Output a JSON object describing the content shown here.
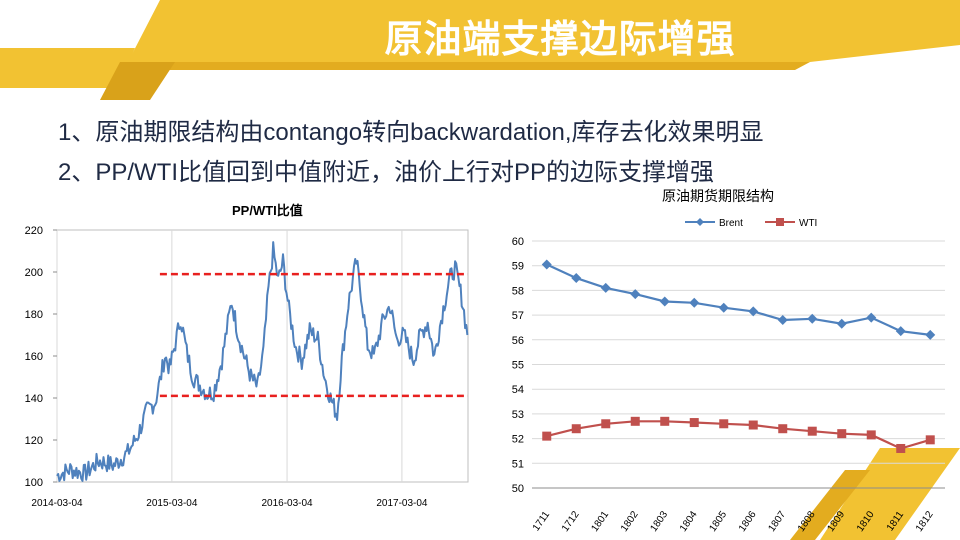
{
  "slide": {
    "title": "原油端支撑边际增强",
    "bullets": [
      "1、原油期限结构由contango转向backwardation,库存去化效果明显",
      "2、PP/WTI比值回到中值附近，油价上行对PP的边际支撑增强"
    ],
    "colors": {
      "accent_gold": "#f2c232",
      "accent_dark": "#d9a21a",
      "text": "#1f2a44"
    }
  },
  "chart_data": [
    {
      "type": "line",
      "title": "PP/WTI比值",
      "x_ticks": [
        "2014-03-04",
        "2015-03-04",
        "2016-03-04",
        "2017-03-04"
      ],
      "y_ticks": [
        "100",
        "120",
        "140",
        "160",
        "180",
        "200",
        "220"
      ],
      "ylim": [
        100,
        220
      ],
      "xlim": [
        "2014-03-04",
        "2017-09-30"
      ],
      "grid": "vertical",
      "series": [
        {
          "color": "#4f81bd",
          "points": [
            [
              "2014-03-04",
              103
            ],
            [
              "2014-04-15",
              106
            ],
            [
              "2014-06-01",
              104
            ],
            [
              "2014-07-15",
              110
            ],
            [
              "2014-09-01",
              108
            ],
            [
              "2014-10-15",
              114
            ],
            [
              "2014-11-15",
              122
            ],
            [
              "2014-12-15",
              134
            ],
            [
              "2015-01-10",
              138
            ],
            [
              "2015-01-25",
              148
            ],
            [
              "2015-02-10",
              160
            ],
            [
              "2015-02-25",
              154
            ],
            [
              "2015-03-15",
              166
            ],
            [
              "2015-04-01",
              178
            ],
            [
              "2015-04-20",
              162
            ],
            [
              "2015-05-10",
              150
            ],
            [
              "2015-06-01",
              146
            ],
            [
              "2015-06-25",
              142
            ],
            [
              "2015-07-15",
              143
            ],
            [
              "2015-08-10",
              158
            ],
            [
              "2015-08-25",
              172
            ],
            [
              "2015-09-10",
              186
            ],
            [
              "2015-10-01",
              170
            ],
            [
              "2015-10-20",
              160
            ],
            [
              "2015-11-10",
              150
            ],
            [
              "2015-12-01",
              145
            ],
            [
              "2015-12-20",
              162
            ],
            [
              "2016-01-05",
              192
            ],
            [
              "2016-01-20",
              210
            ],
            [
              "2016-02-05",
              196
            ],
            [
              "2016-02-20",
              205
            ],
            [
              "2016-03-10",
              182
            ],
            [
              "2016-04-01",
              164
            ],
            [
              "2016-04-20",
              158
            ],
            [
              "2016-05-15",
              172
            ],
            [
              "2016-06-10",
              168
            ],
            [
              "2016-07-01",
              150
            ],
            [
              "2016-07-20",
              140
            ],
            [
              "2016-08-10",
              132
            ],
            [
              "2016-08-25",
              158
            ],
            [
              "2016-09-15",
              185
            ],
            [
              "2016-10-10",
              205
            ],
            [
              "2016-10-25",
              190
            ],
            [
              "2016-11-15",
              165
            ],
            [
              "2016-12-05",
              160
            ],
            [
              "2017-01-05",
              178
            ],
            [
              "2017-01-25",
              184
            ],
            [
              "2017-02-15",
              168
            ],
            [
              "2017-03-10",
              170
            ],
            [
              "2017-04-10",
              158
            ],
            [
              "2017-05-01",
              170
            ],
            [
              "2017-05-25",
              176
            ],
            [
              "2017-06-15",
              160
            ],
            [
              "2017-07-10",
              180
            ],
            [
              "2017-08-01",
              196
            ],
            [
              "2017-08-20",
              202
            ],
            [
              "2017-09-10",
              188
            ],
            [
              "2017-09-28",
              170
            ]
          ]
        }
      ],
      "reference_lines": [
        {
          "y": 199,
          "color": "#e8201f",
          "style": "dashed"
        },
        {
          "y": 141,
          "color": "#e8201f",
          "style": "dashed"
        }
      ]
    },
    {
      "type": "line",
      "title": "原油期货期限结构",
      "categories": [
        "1711",
        "1712",
        "1801",
        "1802",
        "1803",
        "1804",
        "1805",
        "1806",
        "1807",
        "1808",
        "1809",
        "1810",
        "1811",
        "1812"
      ],
      "y_ticks": [
        "50",
        "51",
        "52",
        "53",
        "54",
        "55",
        "56",
        "57",
        "58",
        "59",
        "60"
      ],
      "ylim": [
        50,
        60
      ],
      "legend": "top",
      "grid": "horizontal",
      "series": [
        {
          "name": "Brent",
          "color": "#4f81bd",
          "marker": "diamond",
          "values": [
            59.05,
            58.5,
            58.1,
            57.85,
            57.55,
            57.5,
            57.3,
            57.15,
            56.8,
            56.85,
            56.65,
            56.9,
            56.35,
            56.2
          ]
        },
        {
          "name": "WTI",
          "color": "#c0504d",
          "marker": "square",
          "values": [
            52.1,
            52.4,
            52.6,
            52.7,
            52.7,
            52.65,
            52.6,
            52.55,
            52.4,
            52.3,
            52.2,
            52.15,
            51.6,
            51.95
          ]
        }
      ]
    }
  ]
}
